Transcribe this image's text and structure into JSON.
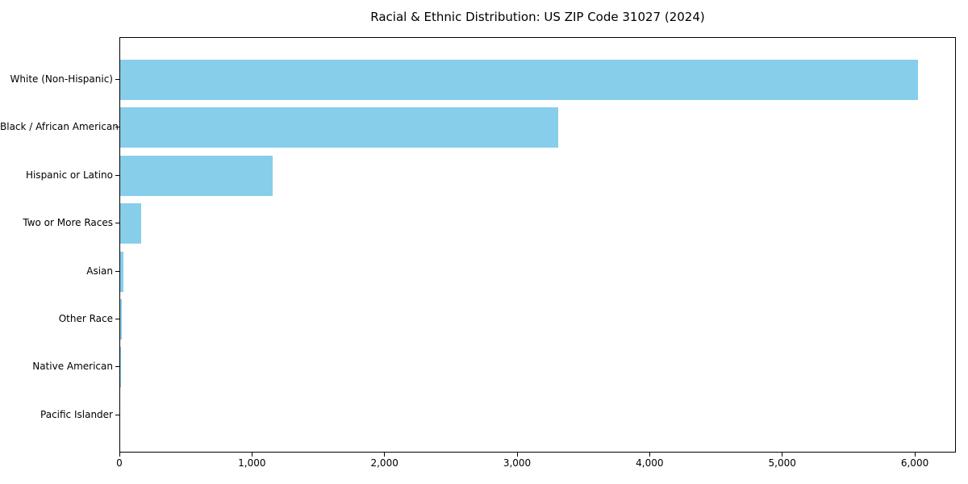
{
  "figure": {
    "background": "#ffffff",
    "text_color": "#000000",
    "spine_color": "#000000"
  },
  "chart_data": {
    "type": "bar",
    "orientation": "horizontal",
    "title": "Racial & Ethnic Distribution: US ZIP Code 31027 (2024)",
    "xlabel": "",
    "ylabel": "",
    "categories": [
      "White (Non-Hispanic)",
      "Black / African American",
      "Hispanic or Latino",
      "Two or More Races",
      "Asian",
      "Other Race",
      "Native American",
      "Pacific Islander"
    ],
    "values": [
      6030,
      3310,
      1150,
      160,
      25,
      12,
      4,
      0
    ],
    "xlim": [
      0,
      6310
    ],
    "x_ticks": [
      0,
      1000,
      2000,
      3000,
      4000,
      5000,
      6000
    ],
    "x_tick_labels": [
      "0",
      "1,000",
      "2,000",
      "3,000",
      "4,000",
      "5,000",
      "6,000"
    ],
    "bar_color": "#87CEEB",
    "grid": false,
    "legend": null
  }
}
